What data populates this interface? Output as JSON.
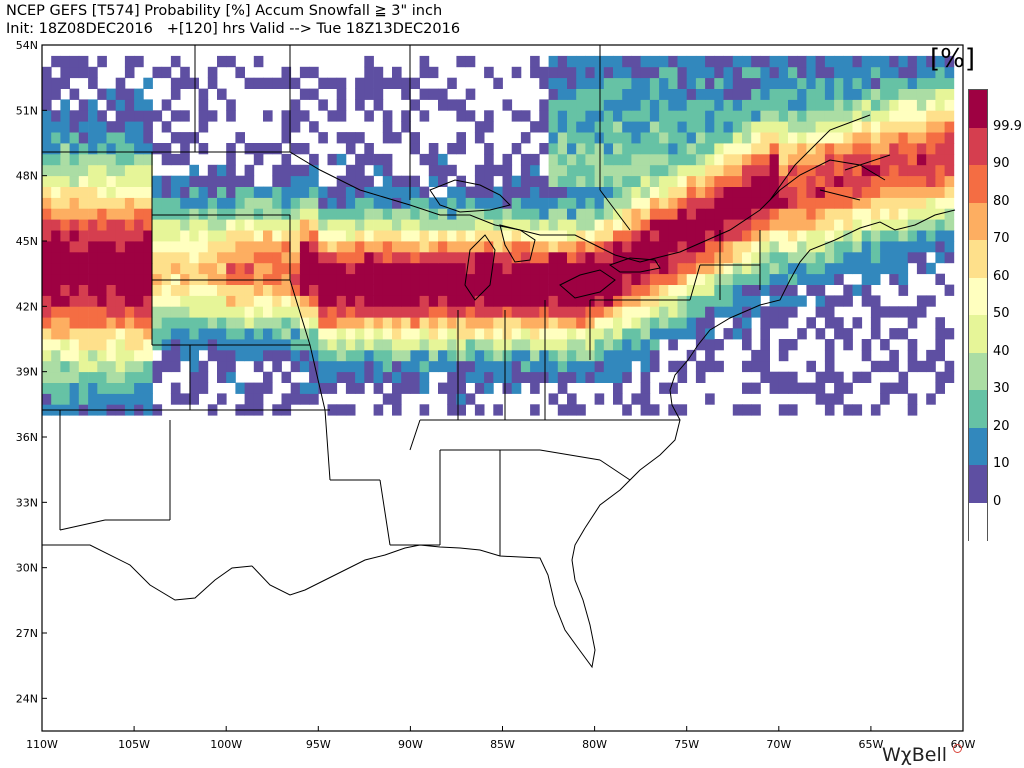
{
  "header": {
    "line1": "NCEP GEFS [T574] Probability [%] Accum Snowfall ≧ 3\" inch",
    "line2": "Init: 18Z08DEC2016   +[120] hrs Valid --> Tue 18Z13DEC2016"
  },
  "units_label": "[%]",
  "logo": "WχBell",
  "axes": {
    "lat_labels": [
      "54N",
      "51N",
      "48N",
      "45N",
      "42N",
      "39N",
      "36N",
      "33N",
      "30N",
      "27N",
      "24N"
    ],
    "lon_labels": [
      "110W",
      "105W",
      "100W",
      "95W",
      "90W",
      "85W",
      "80W",
      "75W",
      "70W",
      "65W",
      "60W"
    ]
  },
  "colorbar": {
    "labels": [
      "99.9",
      "90",
      "80",
      "70",
      "60",
      "50",
      "40",
      "30",
      "20",
      "10",
      "0"
    ],
    "colors": [
      "#9e0142",
      "#d53e4f",
      "#f46d43",
      "#fdae61",
      "#fee08b",
      "#ffffbf",
      "#e6f598",
      "#abdda4",
      "#66c2a5",
      "#3288bd",
      "#5e4fa2",
      "#ffffff"
    ]
  },
  "map": {
    "region": "Eastern and Central United States, Southern Canada",
    "lon_range": [
      -110,
      -60
    ],
    "lat_range": [
      22.5,
      54
    ],
    "probability_field": [
      {
        "lat": 45,
        "lon": -108,
        "level": 90
      },
      {
        "lat": 41,
        "lon": -107,
        "level": 90
      },
      {
        "lat": 43,
        "lon": -92,
        "level": 90
      },
      {
        "lat": 42,
        "lon": -84,
        "level": 90
      },
      {
        "lat": 44,
        "lon": -75,
        "level": 90
      },
      {
        "lat": 47,
        "lon": -67,
        "level": 80
      },
      {
        "lat": 48,
        "lon": -76,
        "level": 50
      },
      {
        "lat": 51,
        "lon": -75,
        "level": 30
      }
    ]
  }
}
